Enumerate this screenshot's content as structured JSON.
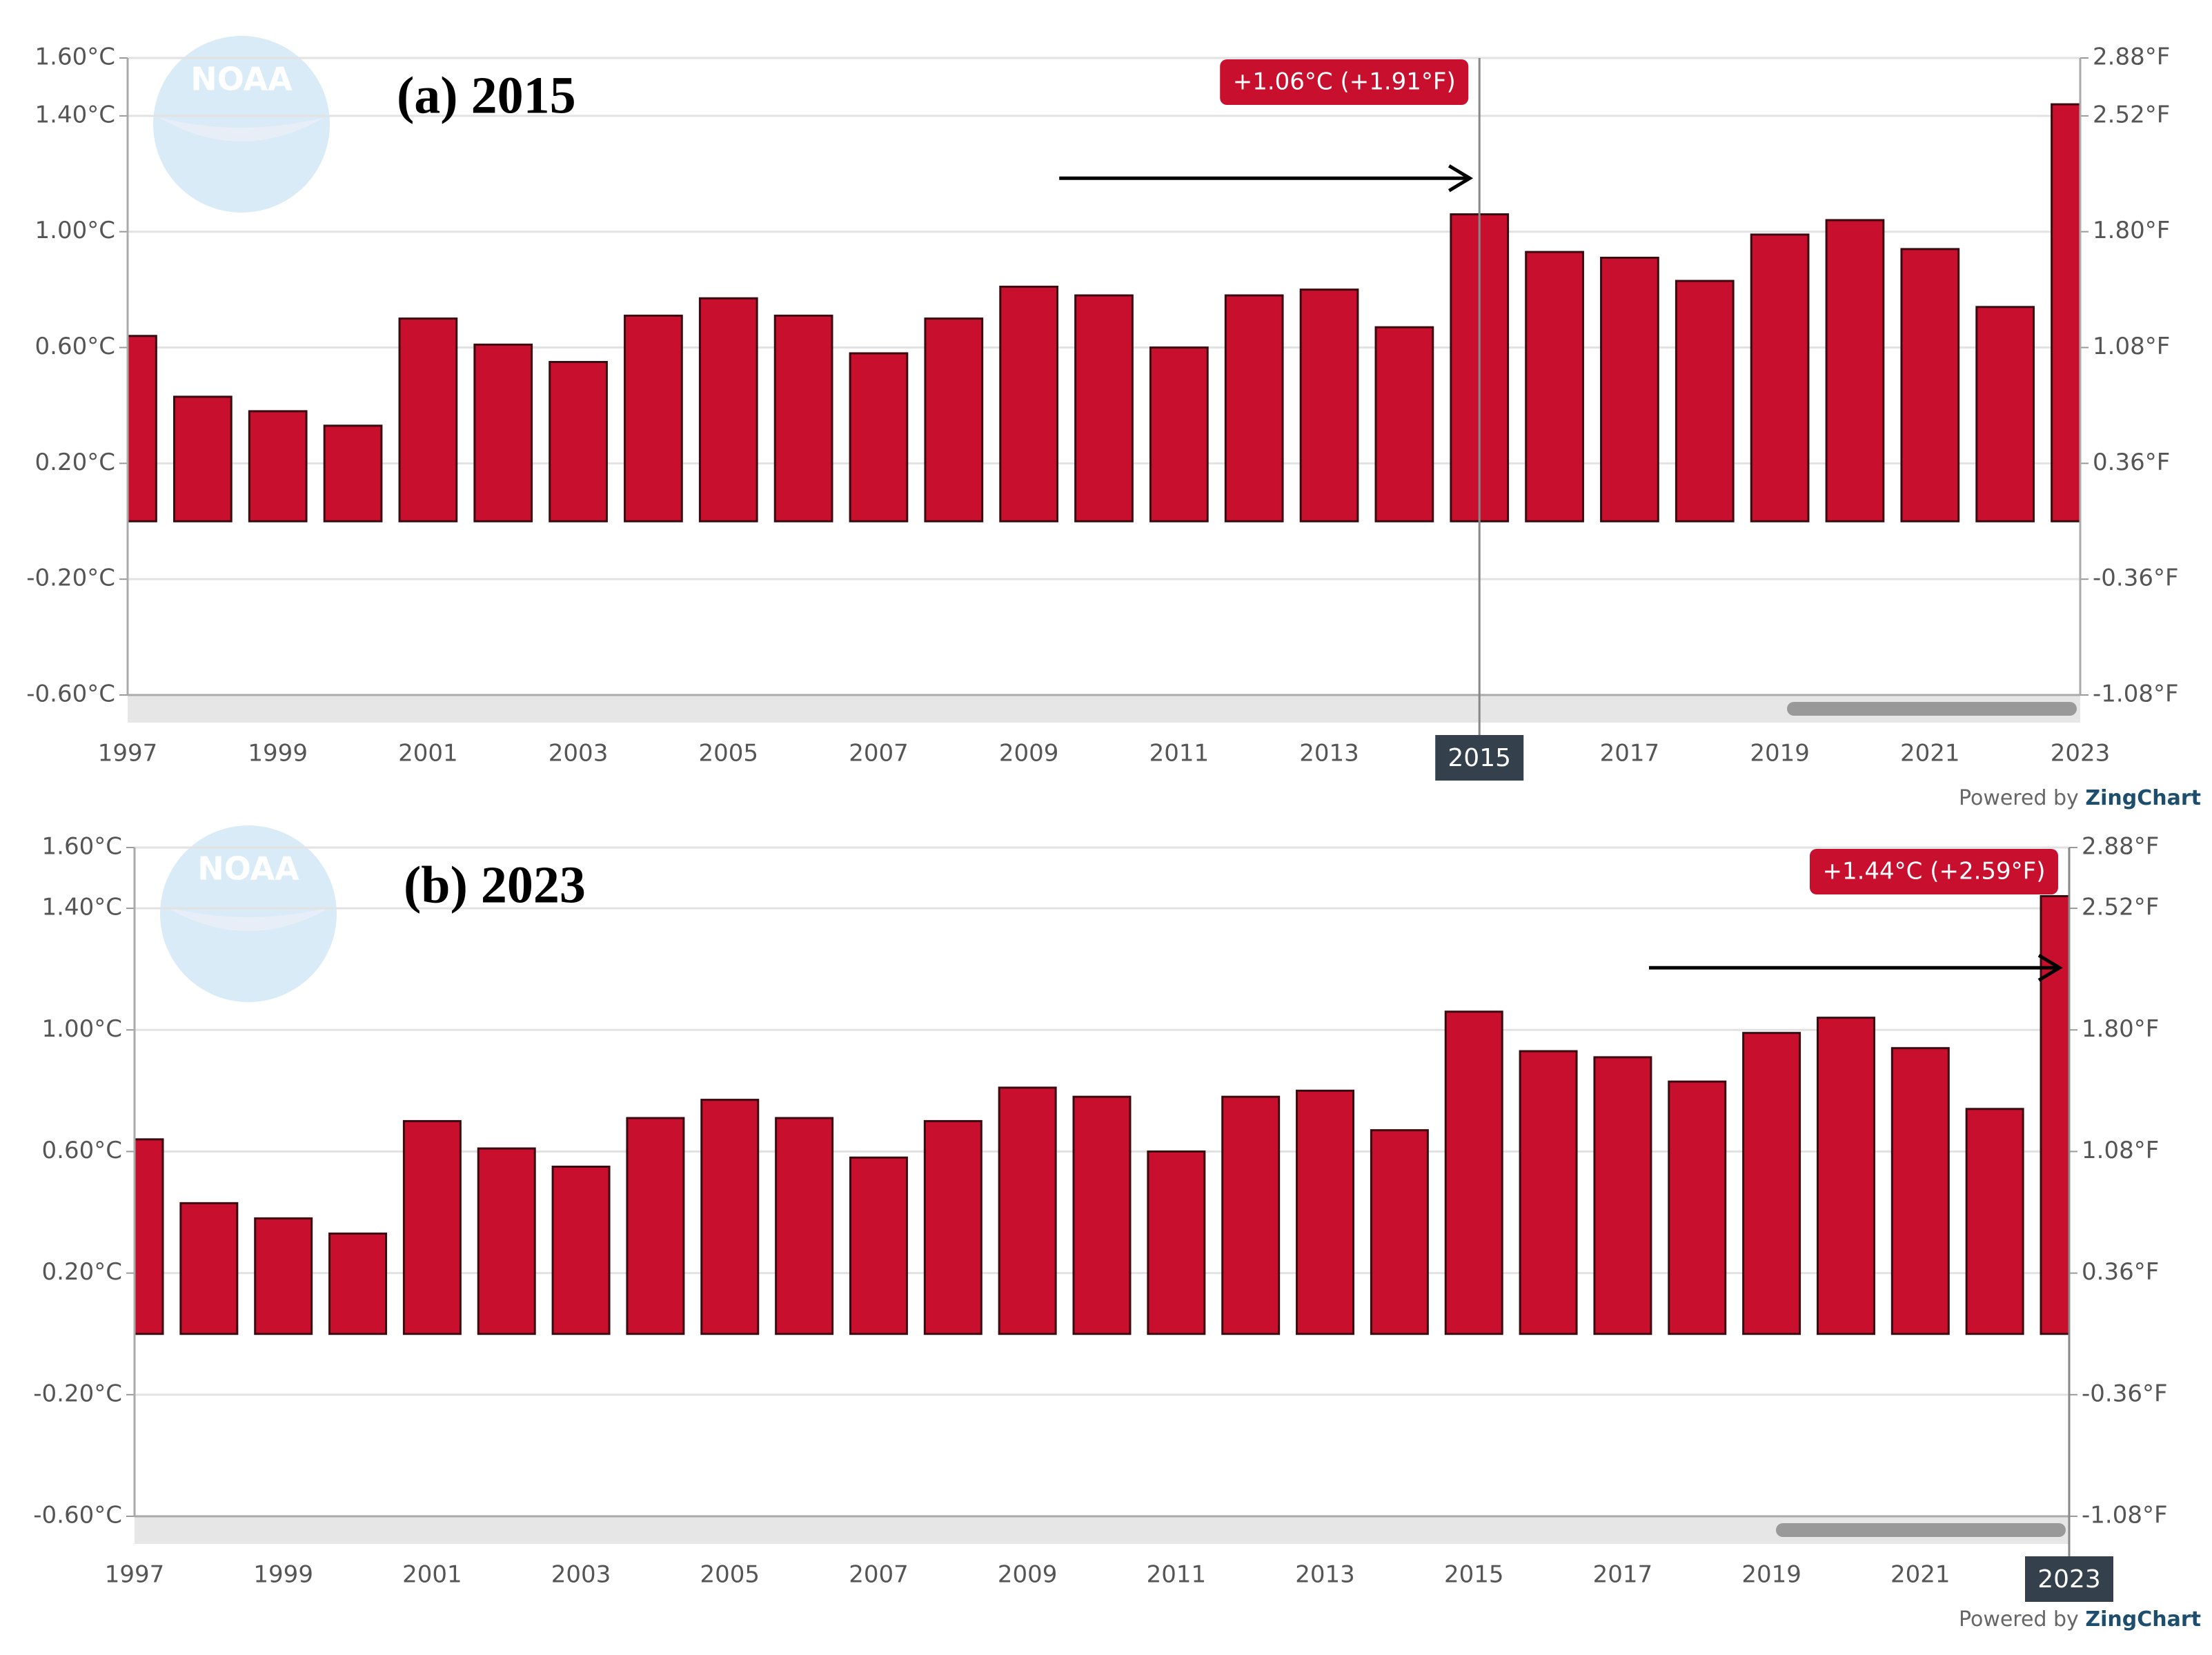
{
  "chart_data": [
    {
      "type": "bar",
      "title": "(a) 2015",
      "logo_text": "NOAA",
      "categories": [
        1997,
        null,
        1999,
        null,
        2001,
        null,
        2003,
        null,
        2005,
        null,
        2007,
        null,
        2009,
        null,
        2011,
        null,
        2013,
        null,
        2015,
        null,
        2017,
        null,
        2019,
        null,
        2021,
        null,
        2023
      ],
      "values": [
        0.64,
        0.43,
        0.38,
        0.33,
        0.7,
        0.61,
        0.55,
        0.71,
        0.77,
        0.71,
        0.58,
        0.7,
        0.81,
        0.78,
        0.6,
        0.78,
        0.8,
        0.67,
        1.06,
        0.93,
        0.91,
        0.83,
        0.99,
        1.04,
        0.94,
        0.74,
        1.44
      ],
      "color": "#c8102e",
      "ylim": [
        -0.6,
        1.6
      ],
      "yticks": [
        {
          "value": -0.6,
          "label": "-0.60°C"
        },
        {
          "value": -0.2,
          "label": "-0.20°C"
        },
        {
          "value": 0.2,
          "label": "0.20°C"
        },
        {
          "value": 0.6,
          "label": "0.60°C"
        },
        {
          "value": 1.0,
          "label": "1.00°C"
        },
        {
          "value": 1.4,
          "label": "1.40°C"
        },
        {
          "value": 1.6,
          "label": "1.60°C"
        }
      ],
      "y2lim": [
        -1.08,
        2.88
      ],
      "y2ticks": [
        {
          "value": -1.08,
          "label": "-1.08°F"
        },
        {
          "value": -0.36,
          "label": "-0.36°F"
        },
        {
          "value": 0.36,
          "label": "0.36°F"
        },
        {
          "value": 1.08,
          "label": "1.08°F"
        },
        {
          "value": 1.8,
          "label": "1.80°F"
        },
        {
          "value": 2.52,
          "label": "2.52°F"
        },
        {
          "value": 2.88,
          "label": "2.88°F"
        }
      ],
      "grid": true,
      "annotation": {
        "x": 2015,
        "text": "+1.06°C (+1.91°F)"
      },
      "credit_prefix": "Powered by",
      "credit_brand": "ZingChart"
    },
    {
      "type": "bar",
      "title": "(b) 2023",
      "logo_text": "NOAA",
      "categories": [
        1997,
        null,
        1999,
        null,
        2001,
        null,
        2003,
        null,
        2005,
        null,
        2007,
        null,
        2009,
        null,
        2011,
        null,
        2013,
        null,
        2015,
        null,
        2017,
        null,
        2019,
        null,
        2021,
        null,
        2023
      ],
      "values": [
        0.64,
        0.43,
        0.38,
        0.33,
        0.7,
        0.61,
        0.55,
        0.71,
        0.77,
        0.71,
        0.58,
        0.7,
        0.81,
        0.78,
        0.6,
        0.78,
        0.8,
        0.67,
        1.06,
        0.93,
        0.91,
        0.83,
        0.99,
        1.04,
        0.94,
        0.74,
        1.44
      ],
      "color": "#c8102e",
      "ylim": [
        -0.6,
        1.6
      ],
      "yticks": [
        {
          "value": -0.6,
          "label": "-0.60°C"
        },
        {
          "value": -0.2,
          "label": "-0.20°C"
        },
        {
          "value": 0.2,
          "label": "0.20°C"
        },
        {
          "value": 0.6,
          "label": "0.60°C"
        },
        {
          "value": 1.0,
          "label": "1.00°C"
        },
        {
          "value": 1.4,
          "label": "1.40°C"
        },
        {
          "value": 1.6,
          "label": "1.60°C"
        }
      ],
      "y2lim": [
        -1.08,
        2.88
      ],
      "y2ticks": [
        {
          "value": -1.08,
          "label": "-1.08°F"
        },
        {
          "value": -0.36,
          "label": "-0.36°F"
        },
        {
          "value": 0.36,
          "label": "0.36°F"
        },
        {
          "value": 1.08,
          "label": "1.08°F"
        },
        {
          "value": 1.8,
          "label": "1.80°F"
        },
        {
          "value": 2.52,
          "label": "2.52°F"
        },
        {
          "value": 2.88,
          "label": "2.88°F"
        }
      ],
      "grid": true,
      "annotation": {
        "x": 2023,
        "text": "+1.44°C (+2.59°F)"
      },
      "credit_prefix": "Powered by",
      "credit_brand": "ZingChart"
    }
  ]
}
